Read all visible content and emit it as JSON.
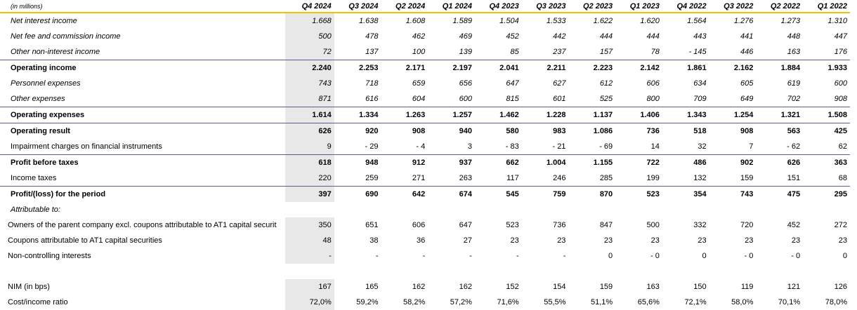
{
  "unit_label": "(in millions)",
  "columns": [
    "Q4 2024",
    "Q3 2024",
    "Q2 2024",
    "Q1 2024",
    "Q4 2023",
    "Q3 2023",
    "Q2 2023",
    "Q1 2023",
    "Q4 2022",
    "Q3 2022",
    "Q2 2022",
    "Q1 2022"
  ],
  "rows": [
    {
      "label": "Net interest income",
      "style": "italic",
      "values": [
        "1.668",
        "1.638",
        "1.608",
        "1.589",
        "1.504",
        "1.533",
        "1.622",
        "1.620",
        "1.564",
        "1.276",
        "1.273",
        "1.310"
      ]
    },
    {
      "label": "Net fee and commission income",
      "style": "italic",
      "values": [
        "500",
        "478",
        "462",
        "469",
        "452",
        "442",
        "444",
        "444",
        "443",
        "441",
        "448",
        "447"
      ]
    },
    {
      "label": "Other non-interest income",
      "style": "italic",
      "line": true,
      "values": [
        "72",
        "137",
        "100",
        "139",
        "85",
        "237",
        "157",
        "78",
        "- 145",
        "446",
        "163",
        "176"
      ]
    },
    {
      "label": "Operating income",
      "style": "bold",
      "values": [
        "2.240",
        "2.253",
        "2.171",
        "2.197",
        "2.041",
        "2.211",
        "2.223",
        "2.142",
        "1.861",
        "2.162",
        "1.884",
        "1.933"
      ]
    },
    {
      "label": "Personnel expenses",
      "style": "italic",
      "values": [
        "743",
        "718",
        "659",
        "656",
        "647",
        "627",
        "612",
        "606",
        "634",
        "605",
        "619",
        "600"
      ]
    },
    {
      "label": "Other expenses",
      "style": "italic",
      "line": true,
      "values": [
        "871",
        "616",
        "604",
        "600",
        "815",
        "601",
        "525",
        "800",
        "709",
        "649",
        "702",
        "908"
      ]
    },
    {
      "label": "Operating expenses",
      "style": "bold",
      "line": true,
      "values": [
        "1.614",
        "1.334",
        "1.263",
        "1.257",
        "1.462",
        "1.228",
        "1.137",
        "1.406",
        "1.343",
        "1.254",
        "1.321",
        "1.508"
      ]
    },
    {
      "label": "Operating result",
      "style": "bold",
      "values": [
        "626",
        "920",
        "908",
        "940",
        "580",
        "983",
        "1.086",
        "736",
        "518",
        "908",
        "563",
        "425"
      ]
    },
    {
      "label": "Impairment charges on financial instruments",
      "style": "normal",
      "line": true,
      "values": [
        "9",
        "- 29",
        "- 4",
        "3",
        "- 83",
        "- 21",
        "- 69",
        "14",
        "32",
        "7",
        "- 62",
        "62"
      ]
    },
    {
      "label": "Profit before taxes",
      "style": "bold",
      "values": [
        "618",
        "948",
        "912",
        "937",
        "662",
        "1.004",
        "1.155",
        "722",
        "486",
        "902",
        "626",
        "363"
      ]
    },
    {
      "label": "Income taxes",
      "style": "normal",
      "line": true,
      "values": [
        "220",
        "259",
        "271",
        "263",
        "117",
        "246",
        "285",
        "199",
        "132",
        "159",
        "151",
        "68"
      ]
    },
    {
      "label": "Profit/(loss) for the period",
      "style": "bold",
      "values": [
        "397",
        "690",
        "642",
        "674",
        "545",
        "759",
        "870",
        "523",
        "354",
        "743",
        "475",
        "295"
      ]
    },
    {
      "label": "Attributable to:",
      "style": "italic",
      "noshade": true,
      "values": []
    },
    {
      "label": "Owners of the parent company excl. coupons attributable to AT1 capital securit",
      "style": "normal",
      "indent": true,
      "values": [
        "350",
        "651",
        "606",
        "647",
        "523",
        "736",
        "847",
        "500",
        "332",
        "720",
        "452",
        "272"
      ]
    },
    {
      "label": "Coupons attributable to AT1 capital securities",
      "style": "normal",
      "indent": true,
      "values": [
        "48",
        "38",
        "36",
        "27",
        "23",
        "23",
        "23",
        "23",
        "23",
        "23",
        "23",
        "23"
      ]
    },
    {
      "label": "Non-controlling interests",
      "style": "normal",
      "indent": true,
      "values": [
        "-",
        "-",
        "-",
        "-",
        "-",
        "-",
        "0",
        "- 0",
        "0",
        "- 0",
        "- 0",
        "0"
      ]
    },
    {
      "label": "",
      "style": "spacer",
      "noshade": true,
      "values": []
    },
    {
      "label": "NIM (in bps)",
      "style": "normal",
      "indent": true,
      "values": [
        "167",
        "165",
        "162",
        "162",
        "152",
        "154",
        "159",
        "163",
        "150",
        "119",
        "121",
        "126"
      ]
    },
    {
      "label": "Cost/income ratio",
      "style": "normal",
      "indent": true,
      "values": [
        "72,0%",
        "59,2%",
        "58,2%",
        "57,2%",
        "71,6%",
        "55,5%",
        "51,1%",
        "65,6%",
        "72,1%",
        "58,0%",
        "70,1%",
        "78,0%"
      ]
    }
  ],
  "colors": {
    "header_rule": "#f2c200",
    "row_rule": "#5c5c94",
    "highlight_column": "#e8e8e8"
  }
}
